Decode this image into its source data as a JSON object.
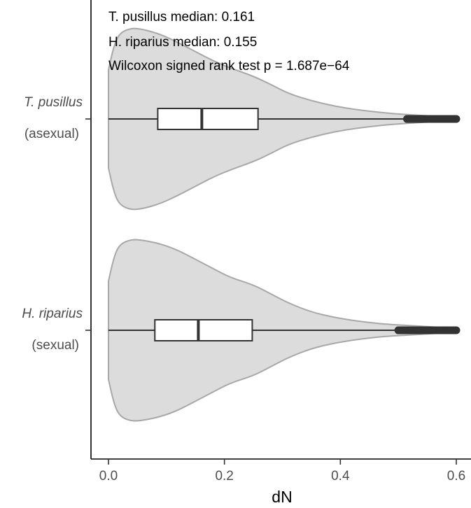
{
  "chart_data": {
    "type": "violin",
    "orientation": "horizontal",
    "xlabel": "dN",
    "ylabel": "",
    "xlim": [
      -0.03,
      0.63
    ],
    "xticks": [
      0.0,
      0.2,
      0.4,
      0.6
    ],
    "xtick_labels": [
      "0.0",
      "0.2",
      "0.4",
      "0.6"
    ],
    "grid": false,
    "categories": [
      {
        "species": "T. pusillus",
        "type": "(asexual)"
      },
      {
        "species": "H. riparius",
        "type": "(sexual)"
      }
    ],
    "series": [
      {
        "box": {
          "min": 0.0,
          "q1": 0.085,
          "median": 0.161,
          "q3": 0.258,
          "whisker_high": 0.515,
          "outliers_from": 0.515,
          "max": 0.6
        },
        "density_width": [
          [
            0.0,
            0.54
          ],
          [
            0.01,
            0.82
          ],
          [
            0.02,
            0.95
          ],
          [
            0.04,
            1.0
          ],
          [
            0.06,
            0.985
          ],
          [
            0.09,
            0.93
          ],
          [
            0.12,
            0.84
          ],
          [
            0.15,
            0.74
          ],
          [
            0.18,
            0.64
          ],
          [
            0.21,
            0.56
          ],
          [
            0.25,
            0.47
          ],
          [
            0.28,
            0.38
          ],
          [
            0.31,
            0.28
          ],
          [
            0.35,
            0.2
          ],
          [
            0.39,
            0.14
          ],
          [
            0.43,
            0.1
          ],
          [
            0.47,
            0.07
          ],
          [
            0.51,
            0.05
          ],
          [
            0.55,
            0.035
          ],
          [
            0.6,
            0.015
          ]
        ]
      },
      {
        "box": {
          "min": 0.0,
          "q1": 0.08,
          "median": 0.155,
          "q3": 0.248,
          "whisker_high": 0.5,
          "outliers_from": 0.5,
          "max": 0.6
        },
        "density_width": [
          [
            0.0,
            0.54
          ],
          [
            0.01,
            0.82
          ],
          [
            0.02,
            0.95
          ],
          [
            0.04,
            1.0
          ],
          [
            0.06,
            0.99
          ],
          [
            0.09,
            0.95
          ],
          [
            0.12,
            0.88
          ],
          [
            0.15,
            0.78
          ],
          [
            0.18,
            0.68
          ],
          [
            0.21,
            0.58
          ],
          [
            0.25,
            0.5
          ],
          [
            0.28,
            0.4
          ],
          [
            0.31,
            0.3
          ],
          [
            0.35,
            0.2
          ],
          [
            0.39,
            0.14
          ],
          [
            0.43,
            0.1
          ],
          [
            0.47,
            0.07
          ],
          [
            0.51,
            0.055
          ],
          [
            0.55,
            0.04
          ],
          [
            0.6,
            0.02
          ]
        ]
      }
    ],
    "annotations": [
      "T. pusillus median: 0.161",
      "H. riparius median: 0.155",
      "Wilcoxon signed rank test p = 1.687e−64"
    ],
    "colors": {
      "violin_fill": "#dcdcdc",
      "violin_stroke": "#a8a8a8",
      "box_line": "#333333",
      "box_fill": "#ffffff",
      "outlier": "#333333",
      "axis": "#000000"
    }
  }
}
